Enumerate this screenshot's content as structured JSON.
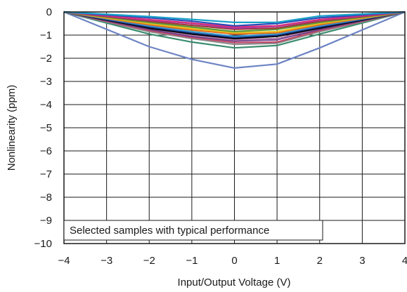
{
  "chart_data": {
    "type": "line",
    "title": "",
    "xlabel": "Input/Output Voltage (V)",
    "ylabel": "Nonlinearity (ppm)",
    "xlim": [
      -4,
      4
    ],
    "ylim": [
      -10,
      0
    ],
    "xticks": [
      -4,
      -3,
      -2,
      -1,
      0,
      1,
      2,
      3,
      4
    ],
    "yticks": [
      0,
      -1,
      -2,
      -3,
      -4,
      -5,
      -6,
      -7,
      -8,
      -9,
      -10
    ],
    "xtick_labels": [
      "−4",
      "−3",
      "−2",
      "−1",
      "0",
      "1",
      "2",
      "3",
      "4"
    ],
    "ytick_labels": [
      "0",
      "−1",
      "−2",
      "−3",
      "−4",
      "−5",
      "−6",
      "−7",
      "−8",
      "−9",
      "−10"
    ],
    "grid": true,
    "annotation": "Selected samples with typical performance",
    "x": [
      -4,
      -2,
      -1,
      0,
      1,
      2,
      4
    ],
    "series": [
      {
        "color": "#6d84c4",
        "values": [
          0,
          -1.5,
          -2.05,
          -2.42,
          -2.25,
          -1.55,
          0
        ]
      },
      {
        "color": "#3a8c6e",
        "values": [
          0,
          -0.95,
          -1.3,
          -1.55,
          -1.45,
          -0.95,
          0
        ]
      },
      {
        "color": "#8a8a8a",
        "values": [
          0,
          -0.85,
          -1.15,
          -1.4,
          -1.35,
          -0.85,
          0
        ]
      },
      {
        "color": "#c04a6a",
        "values": [
          0,
          -0.8,
          -1.1,
          -1.32,
          -1.3,
          -0.8,
          0
        ]
      },
      {
        "color": "#6b3f8a",
        "values": [
          0,
          -0.75,
          -1.05,
          -1.25,
          -1.2,
          -0.75,
          0
        ]
      },
      {
        "color": "#b07aa8",
        "values": [
          0,
          -0.7,
          -1.0,
          -1.2,
          -1.15,
          -0.7,
          0
        ]
      },
      {
        "color": "#000000",
        "values": [
          0,
          -0.7,
          -0.95,
          -1.15,
          -1.05,
          -0.7,
          0
        ]
      },
      {
        "color": "#1a3a8a",
        "values": [
          0,
          -0.65,
          -0.9,
          -1.1,
          -1.0,
          -0.65,
          0
        ]
      },
      {
        "color": "#3a9ad0",
        "values": [
          0,
          -0.6,
          -0.85,
          -1.05,
          -0.95,
          -0.6,
          0
        ]
      },
      {
        "color": "#e06a1a",
        "values": [
          0,
          -0.55,
          -0.78,
          -0.95,
          -0.9,
          -0.55,
          0
        ]
      },
      {
        "color": "#e8c020",
        "values": [
          0,
          -0.5,
          -0.72,
          -0.9,
          -0.85,
          -0.5,
          0
        ]
      },
      {
        "color": "#5a9a3a",
        "values": [
          0,
          -0.45,
          -0.65,
          -0.85,
          -0.75,
          -0.45,
          0
        ]
      },
      {
        "color": "#a03a3a",
        "values": [
          0,
          -0.4,
          -0.58,
          -0.75,
          -0.7,
          -0.4,
          0
        ]
      },
      {
        "color": "#9a3ab0",
        "values": [
          0,
          -0.35,
          -0.5,
          -0.7,
          -0.62,
          -0.35,
          0
        ]
      },
      {
        "color": "#d8307a",
        "values": [
          0,
          -0.33,
          -0.48,
          -0.65,
          -0.6,
          -0.33,
          0
        ]
      },
      {
        "color": "#2a4ab8",
        "values": [
          0,
          -0.25,
          -0.4,
          -0.6,
          -0.5,
          -0.25,
          0
        ]
      },
      {
        "color": "#1aa0c8",
        "values": [
          0,
          -0.2,
          -0.32,
          -0.45,
          -0.45,
          -0.18,
          0
        ]
      }
    ]
  }
}
